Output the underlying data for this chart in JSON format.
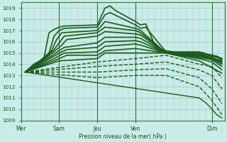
{
  "bg_color": "#c8ece8",
  "grid_minor_color": "#b8ddd8",
  "grid_major_color": "#90c0b0",
  "line_color": "#1a5c1a",
  "ylabel_text": "Pression niveau de la mer( hPa )",
  "xtick_labels": [
    "Mer",
    "Sam",
    "Jeu",
    "Ven",
    "Dim"
  ],
  "xtick_positions": [
    0.0,
    0.75,
    1.5,
    2.25,
    3.75
  ],
  "ylim": [
    1009.0,
    1019.5
  ],
  "yticks": [
    1009,
    1010,
    1011,
    1012,
    1013,
    1014,
    1015,
    1016,
    1017,
    1018,
    1019
  ],
  "xlim": [
    0.0,
    4.0
  ],
  "origin_x": 0.08,
  "origin_y": 1013.3,
  "lines": [
    {
      "x": [
        0.08,
        0.25,
        0.45,
        0.55,
        0.65,
        0.75,
        0.85,
        1.5,
        1.65,
        1.75,
        1.85,
        2.25,
        2.35,
        2.45,
        2.65,
        2.85,
        3.0,
        3.5,
        3.6,
        3.65,
        3.75,
        3.85,
        3.95
      ],
      "y": [
        1013.3,
        1014.0,
        1014.5,
        1016.8,
        1017.1,
        1017.3,
        1017.4,
        1017.5,
        1019.0,
        1019.2,
        1018.8,
        1017.8,
        1017.5,
        1017.6,
        1015.5,
        1015.2,
        1015.1,
        1015.1,
        1015.0,
        1014.9,
        1014.8,
        1014.7,
        1014.5
      ],
      "lw": 1.2,
      "ls": "-",
      "marker": null
    },
    {
      "x": [
        0.08,
        0.35,
        0.55,
        0.65,
        0.75,
        0.85,
        1.5,
        1.65,
        1.75,
        2.25,
        2.35,
        2.45,
        2.85,
        3.5,
        3.65,
        3.75,
        3.85,
        3.95
      ],
      "y": [
        1013.3,
        1014.2,
        1015.0,
        1016.5,
        1017.0,
        1017.2,
        1017.3,
        1018.4,
        1018.6,
        1017.5,
        1017.2,
        1017.3,
        1015.1,
        1015.0,
        1014.9,
        1014.8,
        1014.7,
        1014.5
      ],
      "lw": 1.2,
      "ls": "-",
      "marker": null
    },
    {
      "x": [
        0.08,
        0.4,
        0.6,
        0.7,
        0.8,
        1.5,
        1.65,
        2.25,
        2.35,
        2.85,
        3.5,
        3.65,
        3.75,
        3.85,
        3.95
      ],
      "y": [
        1013.3,
        1014.4,
        1015.2,
        1016.2,
        1016.8,
        1017.0,
        1017.8,
        1017.2,
        1017.0,
        1015.0,
        1014.9,
        1014.8,
        1014.7,
        1014.6,
        1014.4
      ],
      "lw": 1.2,
      "ls": "-",
      "marker": null
    },
    {
      "x": [
        0.08,
        0.45,
        0.65,
        0.75,
        0.85,
        1.5,
        1.65,
        2.25,
        2.35,
        2.85,
        3.5,
        3.65,
        3.95
      ],
      "y": [
        1013.3,
        1014.5,
        1015.3,
        1015.9,
        1016.5,
        1016.8,
        1017.3,
        1017.0,
        1016.8,
        1015.0,
        1014.9,
        1014.7,
        1014.3
      ],
      "lw": 1.2,
      "ls": "-",
      "marker": null
    },
    {
      "x": [
        0.08,
        0.5,
        0.7,
        0.8,
        0.9,
        1.5,
        1.65,
        2.25,
        2.35,
        2.85,
        3.5,
        3.75,
        3.95
      ],
      "y": [
        1013.3,
        1014.6,
        1015.3,
        1015.7,
        1016.2,
        1016.5,
        1016.9,
        1016.7,
        1016.6,
        1015.0,
        1014.8,
        1014.6,
        1014.2
      ],
      "lw": 1.2,
      "ls": "-",
      "marker": null
    },
    {
      "x": [
        0.08,
        0.55,
        0.75,
        0.85,
        1.5,
        1.65,
        2.25,
        2.35,
        2.85,
        3.5,
        3.75,
        3.95
      ],
      "y": [
        1013.3,
        1014.6,
        1015.2,
        1015.5,
        1015.9,
        1016.4,
        1016.4,
        1016.3,
        1015.0,
        1014.8,
        1014.5,
        1014.1
      ],
      "lw": 1.2,
      "ls": "-",
      "marker": null
    },
    {
      "x": [
        0.08,
        0.6,
        0.8,
        0.9,
        1.5,
        1.65,
        2.25,
        2.35,
        2.85,
        3.5,
        3.75,
        3.95
      ],
      "y": [
        1013.3,
        1014.6,
        1015.1,
        1015.3,
        1015.5,
        1016.0,
        1016.1,
        1016.0,
        1015.0,
        1014.7,
        1014.5,
        1014.0
      ],
      "lw": 1.2,
      "ls": "-",
      "marker": null
    },
    {
      "x": [
        0.08,
        0.65,
        0.85,
        1.5,
        1.65,
        2.25,
        2.35,
        2.85,
        3.5,
        3.75,
        3.95
      ],
      "y": [
        1013.3,
        1014.5,
        1015.0,
        1015.1,
        1015.6,
        1015.8,
        1015.7,
        1015.0,
        1014.6,
        1014.4,
        1013.8
      ],
      "lw": 1.2,
      "ls": "-",
      "marker": null
    },
    {
      "x": [
        0.08,
        0.7,
        0.9,
        1.5,
        1.65,
        2.25,
        2.85,
        3.5,
        3.75,
        3.95
      ],
      "y": [
        1013.3,
        1014.4,
        1014.8,
        1014.8,
        1015.2,
        1015.4,
        1015.0,
        1014.5,
        1014.2,
        1013.5
      ],
      "lw": 1.2,
      "ls": "-",
      "marker": null
    },
    {
      "x": [
        0.08,
        0.75,
        1.5,
        1.65,
        2.25,
        2.85,
        3.5,
        3.95
      ],
      "y": [
        1013.3,
        1014.3,
        1014.5,
        1015.0,
        1015.0,
        1015.0,
        1014.3,
        1013.2
      ],
      "lw": 1.2,
      "ls": "-",
      "marker": null
    },
    {
      "x": [
        0.08,
        1.5,
        2.25,
        2.85,
        3.5,
        3.75,
        3.95
      ],
      "y": [
        1013.3,
        1014.2,
        1014.5,
        1014.8,
        1014.0,
        1013.8,
        1012.8
      ],
      "lw": 1.0,
      "ls": "--",
      "marker": null
    },
    {
      "x": [
        0.08,
        1.5,
        2.25,
        2.85,
        3.5,
        3.75,
        3.95
      ],
      "y": [
        1013.3,
        1013.8,
        1014.0,
        1014.2,
        1013.5,
        1013.0,
        1011.8
      ],
      "lw": 1.0,
      "ls": "--",
      "marker": null
    },
    {
      "x": [
        0.08,
        1.5,
        2.25,
        2.85,
        3.5,
        3.75,
        3.95
      ],
      "y": [
        1013.3,
        1013.3,
        1013.5,
        1013.6,
        1012.8,
        1011.8,
        1010.5
      ],
      "lw": 1.0,
      "ls": "--",
      "marker": null
    },
    {
      "x": [
        0.08,
        1.5,
        2.25,
        2.85,
        3.5,
        3.75,
        3.95
      ],
      "y": [
        1013.3,
        1012.8,
        1013.0,
        1013.0,
        1012.0,
        1010.8,
        1009.5
      ],
      "lw": 1.0,
      "ls": "--",
      "marker": null
    },
    {
      "x": [
        0.08,
        3.5,
        3.65,
        3.75,
        3.85,
        3.95
      ],
      "y": [
        1013.3,
        1011.0,
        1010.5,
        1010.0,
        1009.5,
        1009.2
      ],
      "lw": 1.0,
      "ls": "-",
      "marker": null
    }
  ],
  "vline_positions": [
    0.0,
    0.75,
    1.5,
    2.25,
    3.75
  ],
  "vline_color": "#3a7040",
  "axis_label_color": "#1a5020",
  "tick_color": "#1a5020"
}
